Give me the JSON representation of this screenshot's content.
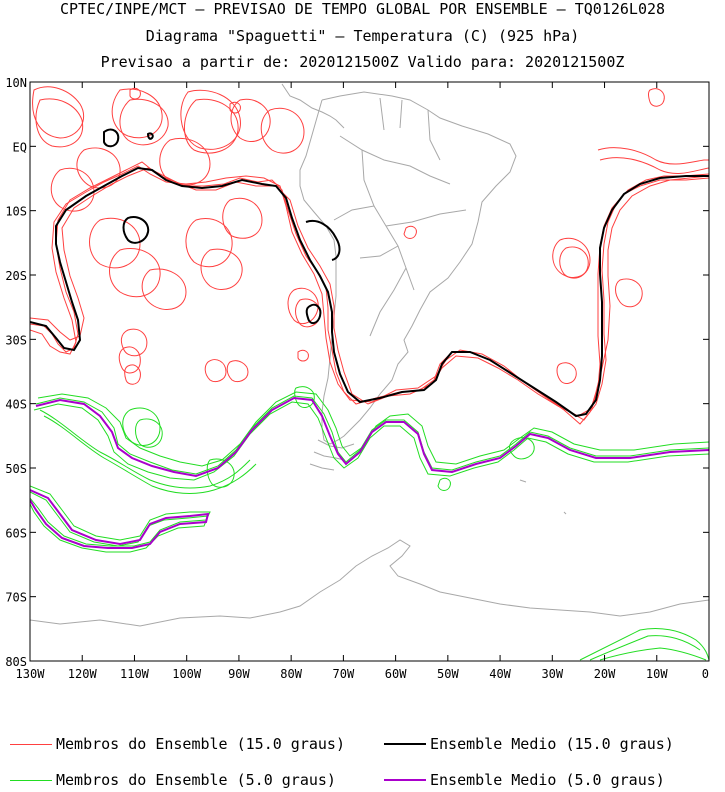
{
  "header": {
    "line1": "CPTEC/INPE/MCT – PREVISAO DE TEMPO GLOBAL POR ENSEMBLE – TQ0126L028",
    "line2": "Diagrama \"Spaguetti\" – Temperatura (C) (925 hPa)",
    "line3": "Previsao a partir de: 2020121500Z  Valido para: 2020121500Z"
  },
  "map": {
    "lat_labels": [
      "10N",
      "EQ",
      "10S",
      "20S",
      "30S",
      "40S",
      "50S",
      "60S",
      "70S",
      "80S"
    ],
    "lon_labels": [
      "130W",
      "120W",
      "110W",
      "100W",
      "90W",
      "80W",
      "70W",
      "60W",
      "50W",
      "40W",
      "30W",
      "20W",
      "10W",
      "0"
    ],
    "colors": {
      "members_15": "#ff4040",
      "mean_15": "#000000",
      "members_5": "#22dd22",
      "mean_5": "#aa00cc",
      "coast": "#a8a8a8"
    }
  },
  "legend": {
    "members_15_label": "Membros do Ensemble (15.0 graus)",
    "mean_15_label": "Ensemble Medio (15.0 graus)",
    "members_5_label": "Membros do Ensemble (5.0 graus)",
    "mean_5_label": "Ensemble Medio (5.0 graus)"
  }
}
